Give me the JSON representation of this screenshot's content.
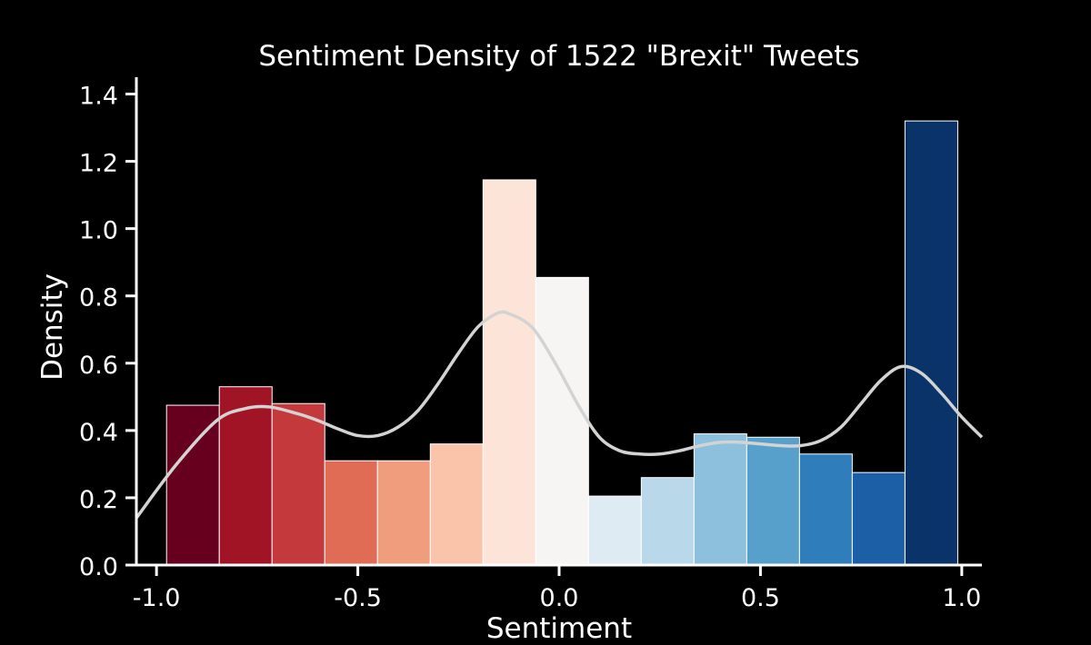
{
  "chart_data": {
    "type": "bar",
    "title": "Sentiment Density of 1522 \"Brexit\" Tweets",
    "xlabel": "Sentiment",
    "ylabel": "Density",
    "xlim": [
      -1.05,
      1.05
    ],
    "ylim": [
      0,
      1.45
    ],
    "x_ticks": [
      "-1.0",
      "-0.5",
      "0.0",
      "0.5",
      "1.0"
    ],
    "y_ticks": [
      "0.0",
      "0.2",
      "0.4",
      "0.6",
      "0.8",
      "1.0",
      "1.2",
      "1.4"
    ],
    "bin_width": 0.131,
    "bins": [
      {
        "x0": -0.975,
        "density": 0.475,
        "color": "#67001f"
      },
      {
        "x0": -0.844,
        "density": 0.53,
        "color": "#a11426"
      },
      {
        "x0": -0.713,
        "density": 0.48,
        "color": "#c4393c"
      },
      {
        "x0": -0.582,
        "density": 0.31,
        "color": "#e06c56"
      },
      {
        "x0": -0.451,
        "density": 0.31,
        "color": "#f09d7e"
      },
      {
        "x0": -0.32,
        "density": 0.36,
        "color": "#f9c4a9"
      },
      {
        "x0": -0.189,
        "density": 1.145,
        "color": "#fde4d8"
      },
      {
        "x0": -0.058,
        "density": 0.855,
        "color": "#f6f5f4"
      },
      {
        "x0": 0.073,
        "density": 0.205,
        "color": "#deebf2"
      },
      {
        "x0": 0.204,
        "density": 0.26,
        "color": "#b9d9ea"
      },
      {
        "x0": 0.335,
        "density": 0.39,
        "color": "#8cc0dc"
      },
      {
        "x0": 0.466,
        "density": 0.38,
        "color": "#57a0cb"
      },
      {
        "x0": 0.597,
        "density": 0.33,
        "color": "#2f7dba"
      },
      {
        "x0": 0.728,
        "density": 0.275,
        "color": "#1c5fa6"
      },
      {
        "x0": 0.859,
        "density": 1.32,
        "color": "#0a3469"
      }
    ],
    "kde": {
      "color": "#d3d3d3",
      "x": [
        -1.05,
        -0.95,
        -0.85,
        -0.78,
        -0.72,
        -0.65,
        -0.6,
        -0.55,
        -0.5,
        -0.45,
        -0.4,
        -0.35,
        -0.3,
        -0.25,
        -0.2,
        -0.15,
        -0.12,
        -0.08,
        -0.05,
        0.0,
        0.05,
        0.1,
        0.15,
        0.2,
        0.25,
        0.3,
        0.35,
        0.4,
        0.45,
        0.5,
        0.55,
        0.6,
        0.65,
        0.7,
        0.75,
        0.8,
        0.85,
        0.9,
        0.95,
        1.0,
        1.05
      ],
      "y": [
        0.14,
        0.3,
        0.43,
        0.465,
        0.47,
        0.45,
        0.43,
        0.405,
        0.385,
        0.385,
        0.41,
        0.46,
        0.54,
        0.63,
        0.71,
        0.75,
        0.745,
        0.72,
        0.68,
        0.58,
        0.47,
        0.38,
        0.34,
        0.33,
        0.33,
        0.34,
        0.355,
        0.365,
        0.365,
        0.36,
        0.355,
        0.355,
        0.37,
        0.41,
        0.48,
        0.55,
        0.59,
        0.57,
        0.51,
        0.44,
        0.38
      ]
    }
  }
}
